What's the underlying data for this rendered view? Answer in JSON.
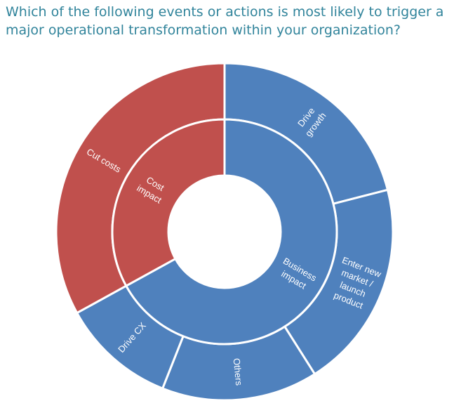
{
  "chart_data": {
    "type": "sunburst",
    "title": "Which of the following events or actions is most likely to trigger a major operational transformation within your organization?",
    "groups": [
      {
        "name": "Business impact",
        "color": "#4f81bd",
        "children": [
          {
            "name": "Drive growth",
            "value": 21
          },
          {
            "name": "Enter new market / launch product",
            "value": 20
          },
          {
            "name": "Others",
            "value": 15
          },
          {
            "name": "Drive CX",
            "value": 11
          }
        ]
      },
      {
        "name": "Cost impact",
        "color": "#c0504d",
        "children": [
          {
            "name": "Cut costs",
            "value": 33
          }
        ]
      }
    ]
  }
}
